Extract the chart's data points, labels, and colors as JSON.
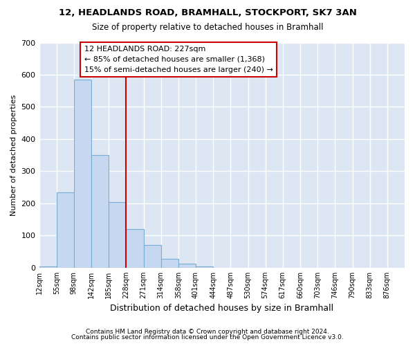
{
  "title1": "12, HEADLANDS ROAD, BRAMHALL, STOCKPORT, SK7 3AN",
  "title2": "Size of property relative to detached houses in Bramhall",
  "xlabel": "Distribution of detached houses by size in Bramhall",
  "ylabel": "Number of detached properties",
  "footnote1": "Contains HM Land Registry data © Crown copyright and database right 2024.",
  "footnote2": "Contains public sector information licensed under the Open Government Licence v3.0.",
  "bin_labels": [
    "12sqm",
    "55sqm",
    "98sqm",
    "142sqm",
    "185sqm",
    "228sqm",
    "271sqm",
    "314sqm",
    "358sqm",
    "401sqm",
    "444sqm",
    "487sqm",
    "530sqm",
    "574sqm",
    "617sqm",
    "660sqm",
    "703sqm",
    "746sqm",
    "790sqm",
    "833sqm",
    "876sqm"
  ],
  "bar_heights": [
    5,
    235,
    585,
    350,
    205,
    120,
    70,
    27,
    13,
    5,
    0,
    0,
    0,
    0,
    0,
    0,
    0,
    0,
    0,
    0,
    0
  ],
  "bar_color": "#c5d8ef",
  "bar_edge_color": "#7aadd4",
  "bg_color": "#dce7f3",
  "grid_color": "#ffffff",
  "annotation_line1": "12 HEADLANDS ROAD: 227sqm",
  "annotation_line2": "← 85% of detached houses are smaller (1,368)",
  "annotation_line3": "15% of semi-detached houses are larger (240) →",
  "annotation_box_color": "#ffffff",
  "annotation_box_edge": "#cc0000",
  "vline_x": 5.0,
  "vline_color": "#cc0000",
  "ylim": [
    0,
    700
  ],
  "yticks": [
    0,
    100,
    200,
    300,
    400,
    500,
    600,
    700
  ]
}
